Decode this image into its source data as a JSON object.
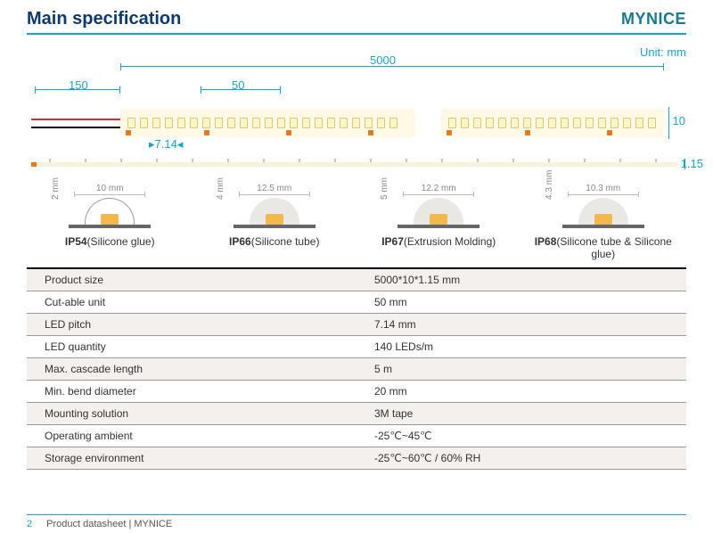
{
  "colors": {
    "accent": "#19a3c4",
    "title": "#0f3a6b",
    "brand": "#1a7a8c",
    "strip_bg": "#fff9e6",
    "chip": "#f2b84b",
    "wire_red": "#d62e2e"
  },
  "header": {
    "title": "Main specification",
    "brand": "MYNICE"
  },
  "unit_label": "Unit: mm",
  "dims": {
    "total": "5000",
    "lead": "150",
    "cut": "50",
    "pitch": "7.14",
    "width": "10",
    "thin": "1.15"
  },
  "ip_variants": [
    {
      "w": "10 mm",
      "h": "2 mm",
      "label_b": "IP54",
      "label_r": "(Silicone glue)",
      "dome": false
    },
    {
      "w": "12.5 mm",
      "h": "4 mm",
      "label_b": "IP66",
      "label_r": "(Silicone tube)",
      "dome": true
    },
    {
      "w": "12.2 mm",
      "h": "5 mm",
      "label_b": "IP67",
      "label_r": "(Extrusion Molding)",
      "dome": true
    },
    {
      "w": "10.3 mm",
      "h": "4.3 mm",
      "label_b": "IP68",
      "label_r": "(Silicone tube & Silicone glue)",
      "dome": true
    }
  ],
  "spec_rows": [
    [
      "Product size",
      "5000*10*1.15 mm"
    ],
    [
      "Cut-able unit",
      "50 mm"
    ],
    [
      "LED pitch",
      "7.14 mm"
    ],
    [
      "LED quantity",
      "140 LEDs/m"
    ],
    [
      "Max. cascade length",
      "5 m"
    ],
    [
      "Min. bend diameter",
      "20 mm"
    ],
    [
      "Mounting solution",
      "3M tape"
    ],
    [
      "Operating ambient",
      "-25℃~45℃"
    ],
    [
      "Storage environment",
      "-25℃~60℃ / 60% RH"
    ]
  ],
  "footer": {
    "page": "2",
    "text": "Product datasheet | MYNICE"
  }
}
